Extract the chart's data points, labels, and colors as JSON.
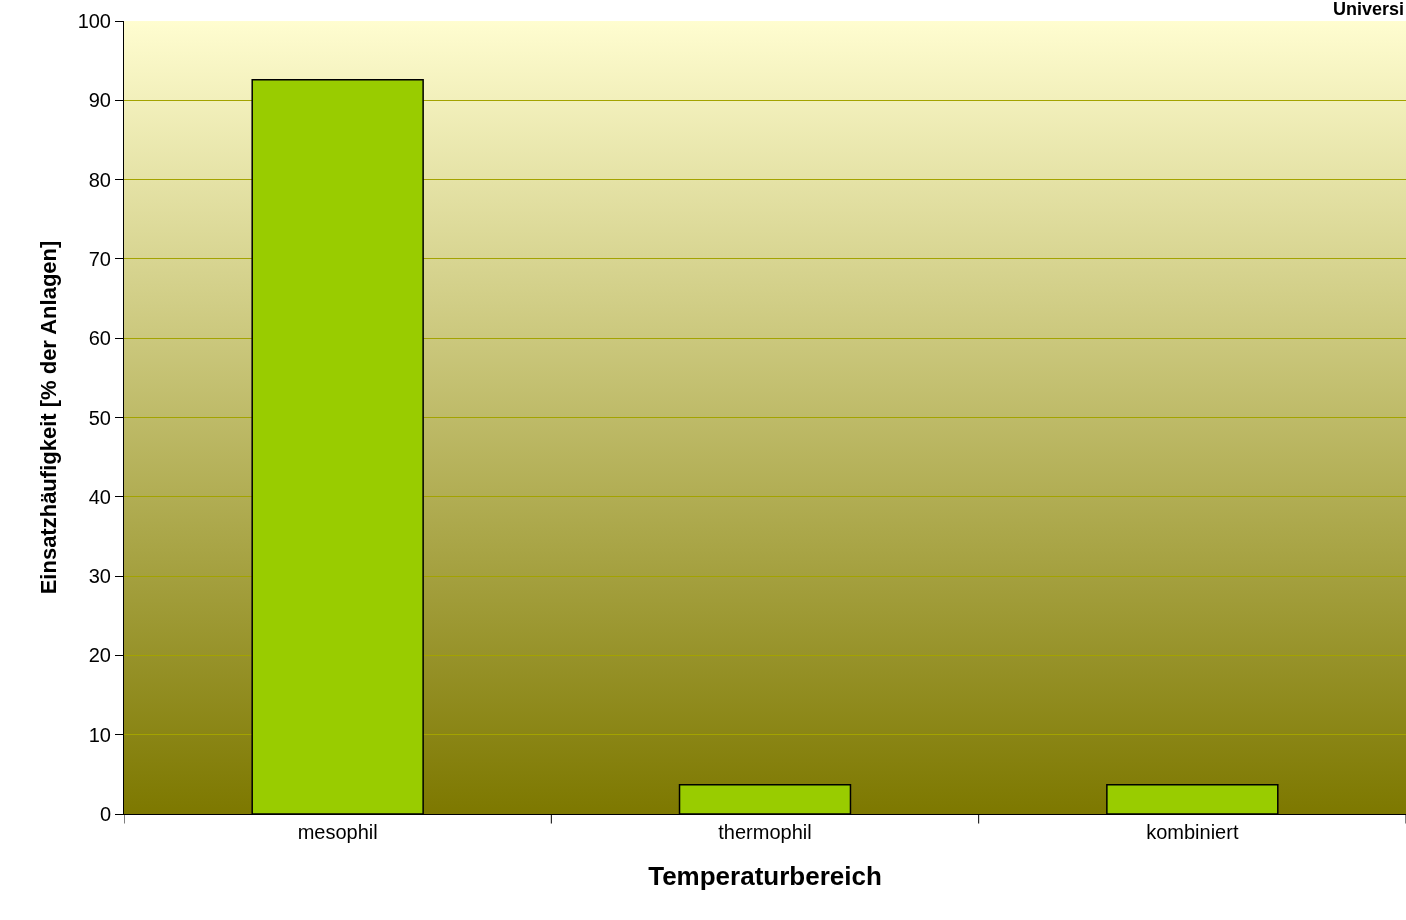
{
  "chart_data": {
    "type": "bar",
    "xlabel": "Temperaturbereich",
    "ylabel": "Einsatzhäufigkeit [% der Anlagen]",
    "annotations": [
      "Universi"
    ],
    "categories": [
      "mesophil",
      "thermophil",
      "kombiniert"
    ],
    "values": [
      92.6,
      3.7,
      3.7
    ],
    "color": "#99cc00",
    "ylim": [
      0,
      100
    ],
    "yticks": [
      0,
      10,
      20,
      30,
      40,
      50,
      60,
      70,
      80,
      90,
      100
    ],
    "grid": "y"
  }
}
